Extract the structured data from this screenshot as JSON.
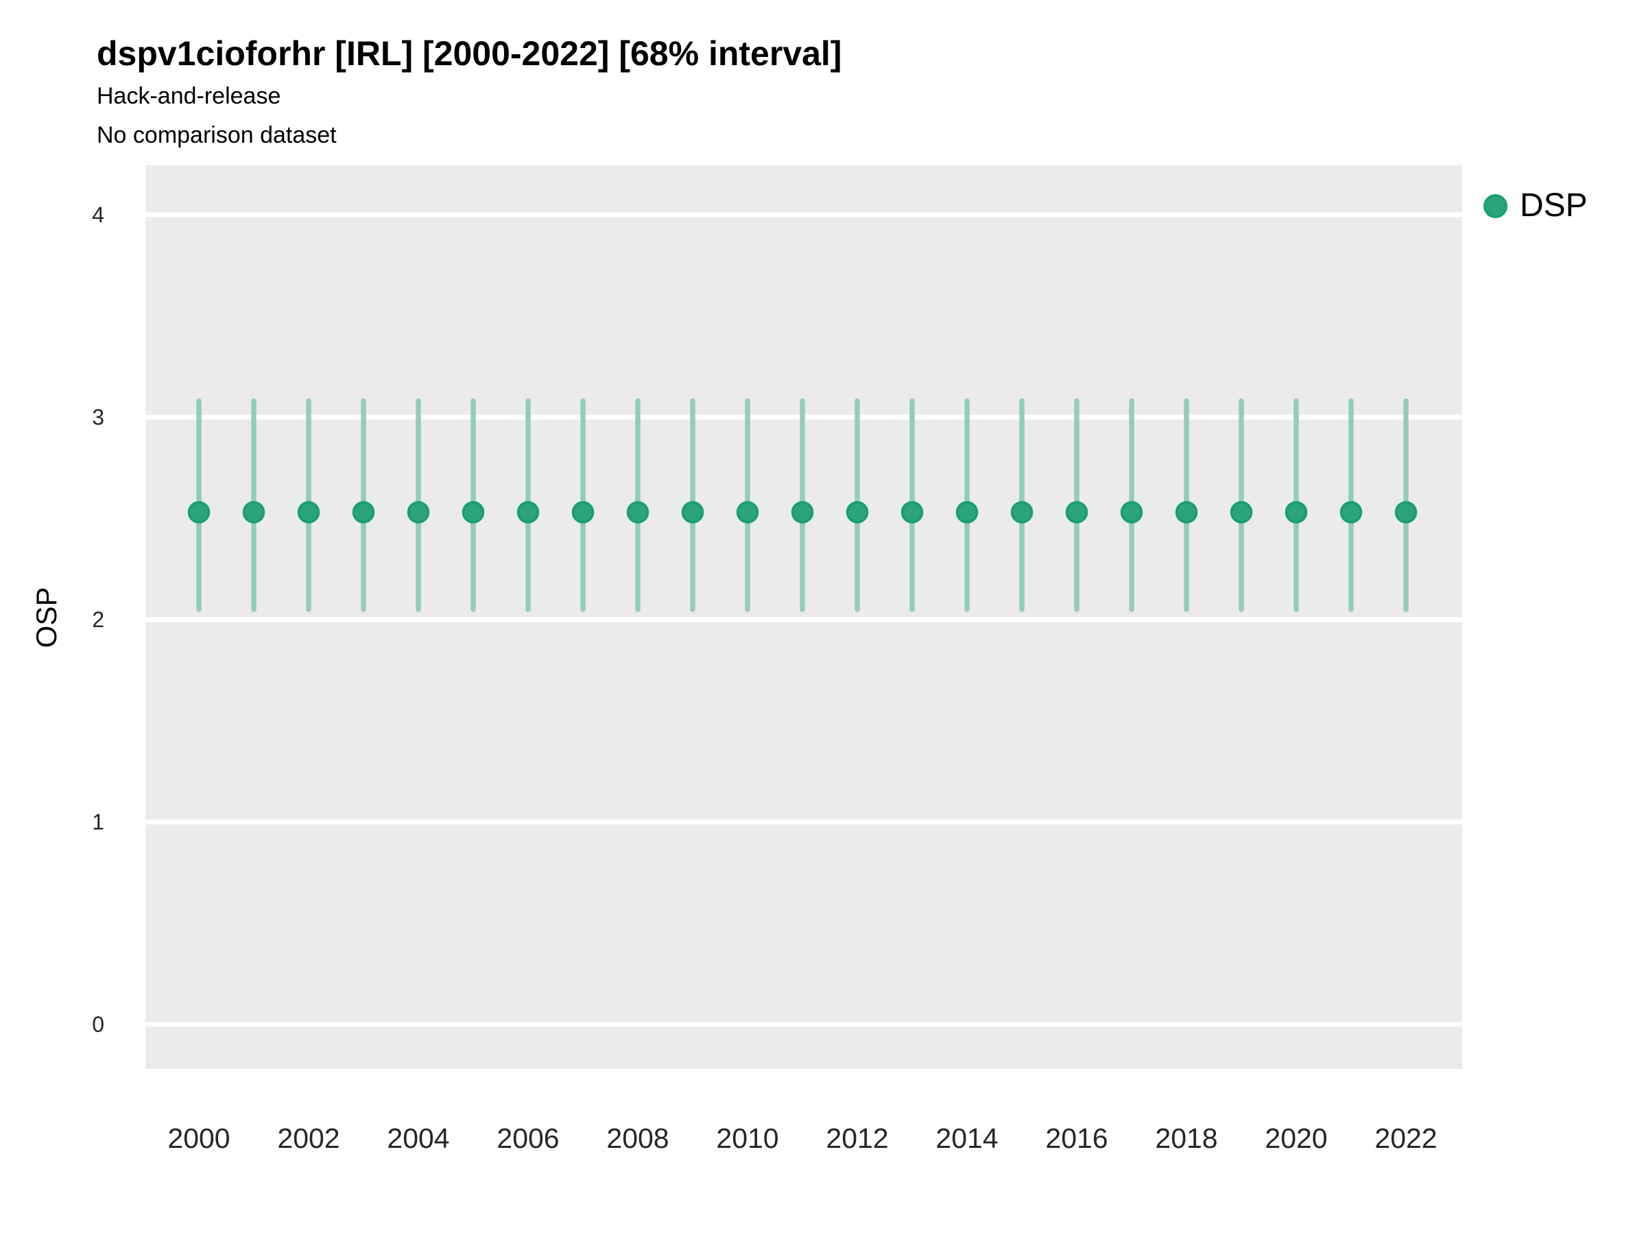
{
  "header": {
    "title": "dspv1cioforhr [IRL] [2000-2022] [68% interval]",
    "subtitle": "Hack-and-release",
    "note": "No comparison dataset"
  },
  "legend": {
    "items": [
      {
        "label": "DSP"
      }
    ]
  },
  "colors": {
    "accent_point": "#2BA47B",
    "accent_point_stroke": "#189E6F",
    "interval_bar": "#93CDB7",
    "panel_bg": "#EBEBEB",
    "gridline": "#FFFFFF",
    "title_text": "#000000",
    "tick_text": "#262626"
  },
  "chart_data": {
    "type": "pointrange",
    "title": "dspv1cioforhr [IRL] [2000-2022] [68% interval]",
    "subtitle": "Hack-and-release",
    "note": "No comparison dataset",
    "interval_label": "68% interval",
    "ylabel": "OSP",
    "xlabel": "",
    "ylim": [
      -0.22,
      4.24
    ],
    "yticks": [
      0,
      1,
      2,
      3,
      4
    ],
    "xticks": [
      2000,
      2002,
      2004,
      2006,
      2008,
      2010,
      2012,
      2014,
      2016,
      2018,
      2020,
      2022
    ],
    "x": [
      2000,
      2001,
      2002,
      2003,
      2004,
      2005,
      2006,
      2007,
      2008,
      2009,
      2010,
      2011,
      2012,
      2013,
      2014,
      2015,
      2016,
      2017,
      2018,
      2019,
      2020,
      2021,
      2022
    ],
    "series": [
      {
        "name": "DSP",
        "point": [
          2.53,
          2.53,
          2.53,
          2.53,
          2.53,
          2.53,
          2.53,
          2.53,
          2.53,
          2.53,
          2.53,
          2.53,
          2.53,
          2.53,
          2.53,
          2.53,
          2.53,
          2.53,
          2.53,
          2.53,
          2.53,
          2.53,
          2.53
        ],
        "lower": [
          2.05,
          2.05,
          2.05,
          2.05,
          2.05,
          2.05,
          2.05,
          2.05,
          2.05,
          2.05,
          2.05,
          2.05,
          2.05,
          2.05,
          2.05,
          2.05,
          2.05,
          2.05,
          2.05,
          2.05,
          2.05,
          2.05,
          2.05
        ],
        "upper": [
          3.08,
          3.08,
          3.08,
          3.08,
          3.08,
          3.08,
          3.08,
          3.08,
          3.08,
          3.08,
          3.08,
          3.08,
          3.08,
          3.08,
          3.08,
          3.08,
          3.08,
          3.08,
          3.08,
          3.08,
          3.08,
          3.08,
          3.08
        ]
      }
    ],
    "legend_position": "right",
    "grid": "horizontal-major-only"
  }
}
